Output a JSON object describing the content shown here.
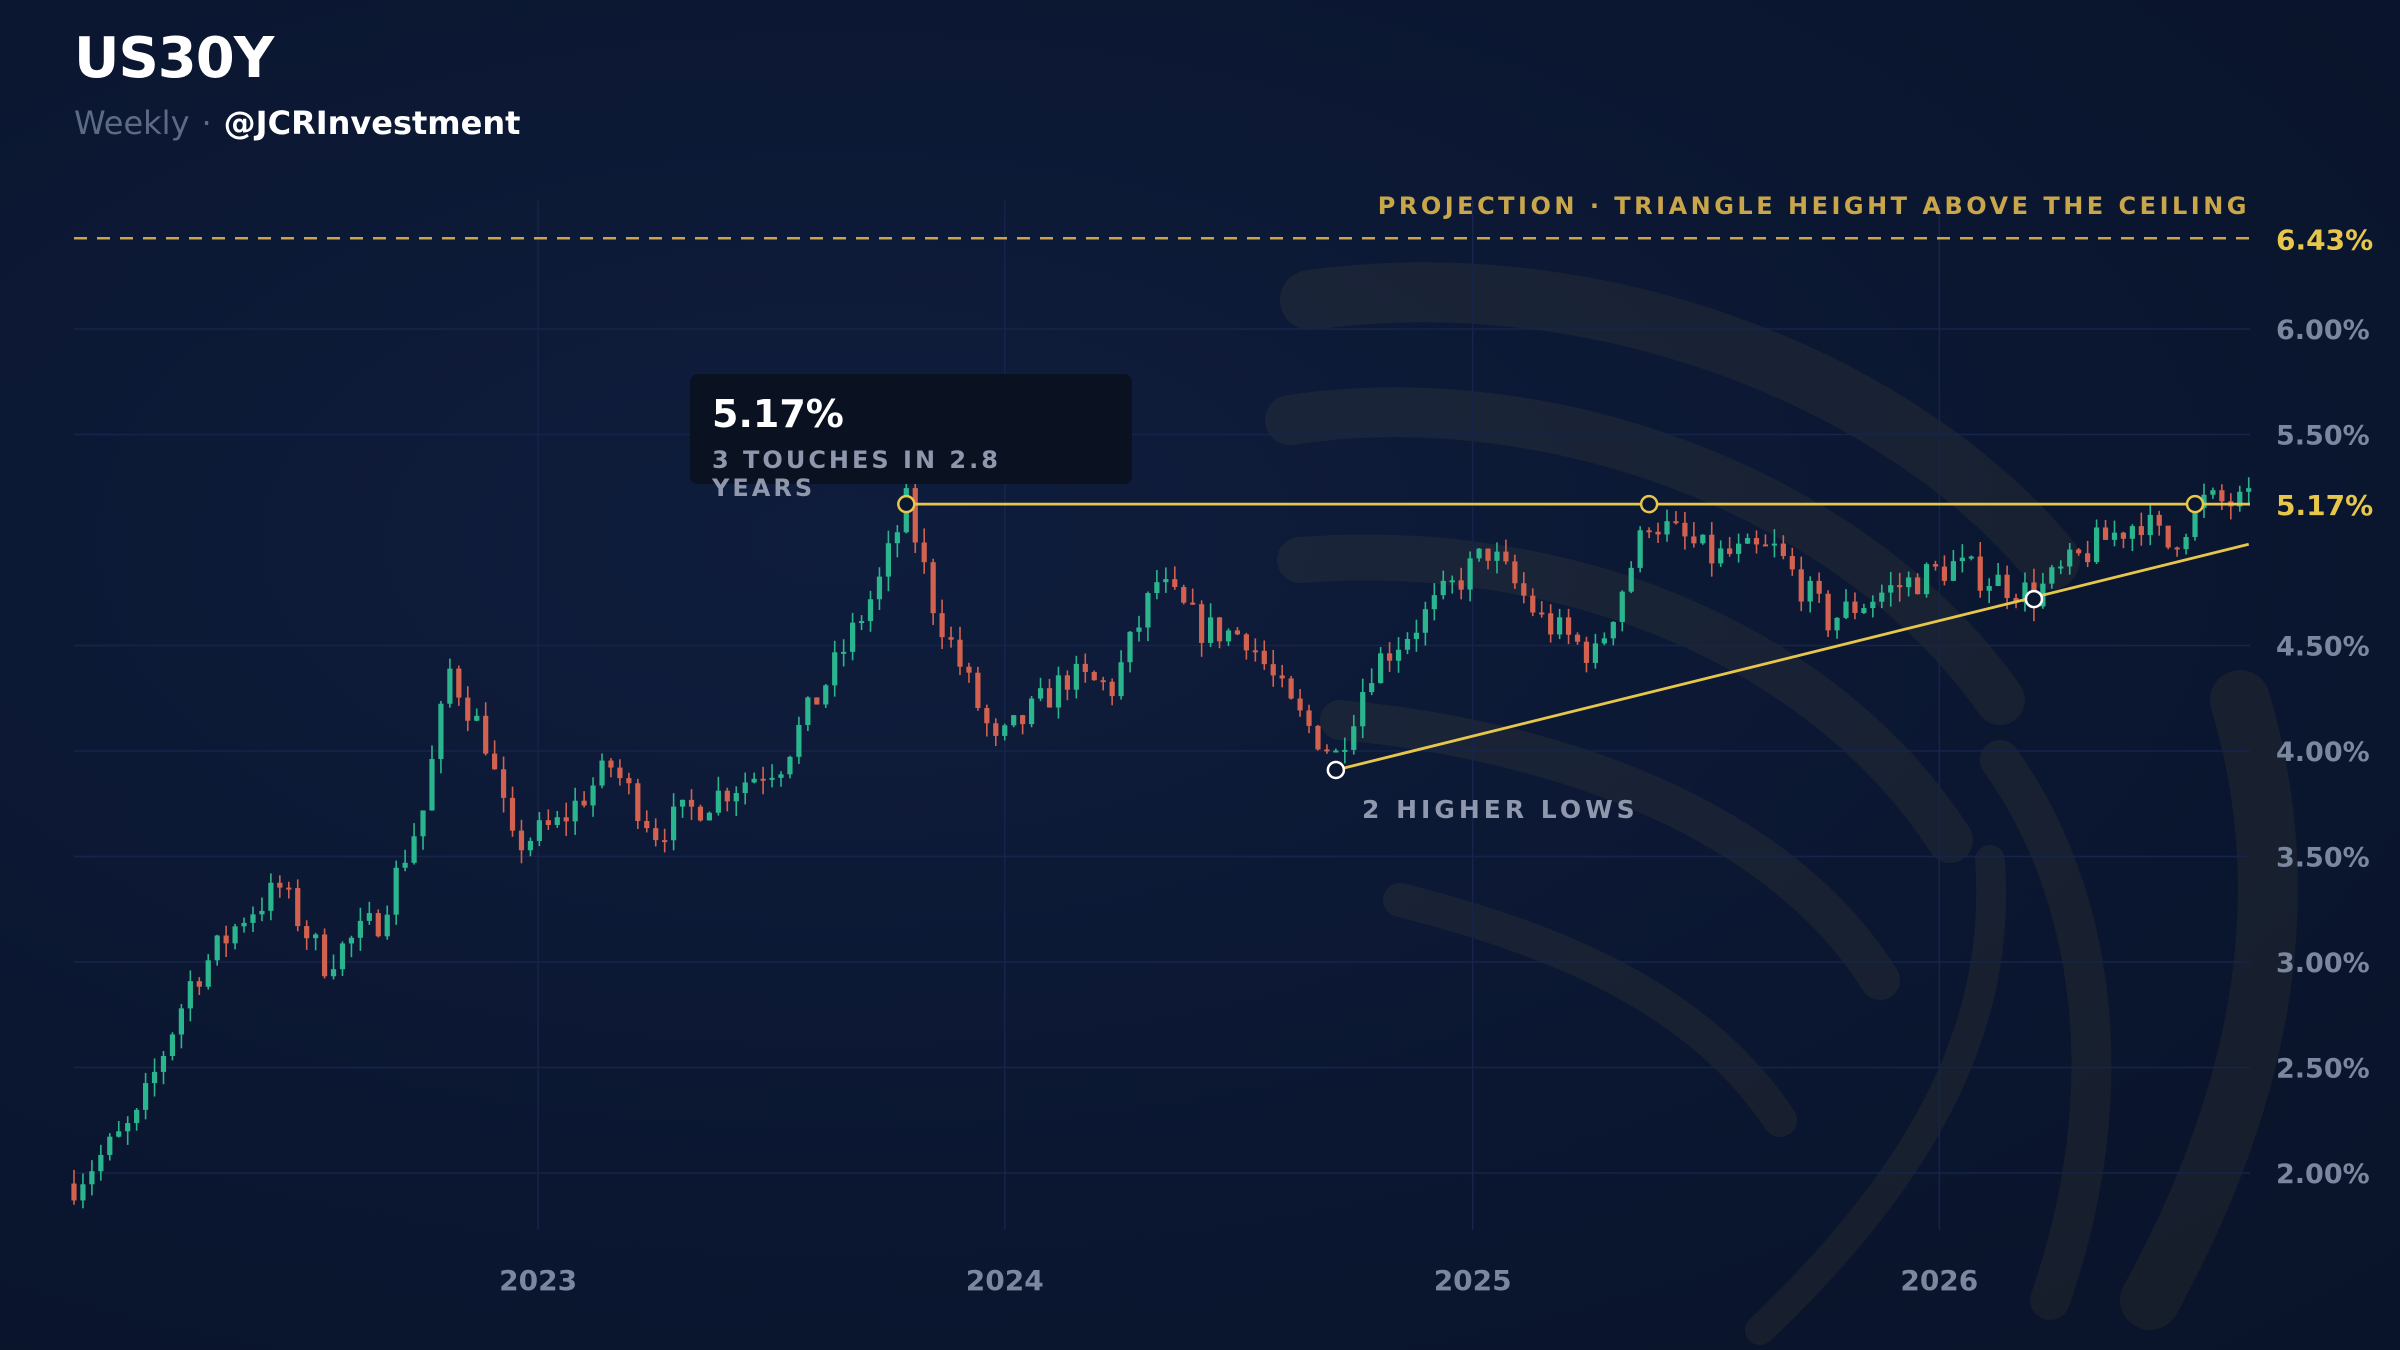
{
  "header": {
    "title": "US30Y",
    "timeframe": "Weekly",
    "separator": "·",
    "handle": "@JCRInvestment"
  },
  "colors": {
    "background": "#0b1731",
    "up": "#2bb58e",
    "down": "#d2624f",
    "trendline": "#e7c64c",
    "projection": "#c9a64a",
    "axis_text": "#7b879f",
    "grid": "#16244a"
  },
  "annotations": {
    "projection_label": "PROJECTION · TRIANGLE HEIGHT ABOVE THE CEILING",
    "projection_value": "6.43%",
    "ceiling_value": "5.17%",
    "callout_value": "5.17%",
    "callout_label": "3 TOUCHES IN 2.8 YEARS",
    "higher_lows_label": "2 HIGHER LOWS"
  },
  "chart_data": {
    "type": "candlestick",
    "title": "US30Y",
    "subtitle": "Weekly",
    "x_ticks": [
      {
        "label": "2023",
        "date": "2023-01-01"
      },
      {
        "label": "2024",
        "date": "2024-01-01"
      },
      {
        "label": "2025",
        "date": "2025-01-01"
      },
      {
        "label": "2026",
        "date": "2026-01-01"
      }
    ],
    "y_ticks": [
      {
        "value": 2.0,
        "label": "2.00%"
      },
      {
        "value": 2.5,
        "label": "2.50%"
      },
      {
        "value": 3.0,
        "label": "3.00%"
      },
      {
        "value": 3.5,
        "label": "3.50%"
      },
      {
        "value": 4.0,
        "label": "4.00%"
      },
      {
        "value": 4.5,
        "label": "4.50%"
      },
      {
        "value": 5.5,
        "label": "5.50%"
      },
      {
        "value": 6.0,
        "label": "6.00%"
      }
    ],
    "y_range": [
      1.75,
      6.6
    ],
    "x_range": [
      "2022-01-03",
      "2026-09-01"
    ],
    "ceiling": 5.17,
    "projection": 6.43,
    "touch_points": [
      {
        "date": "2023-10-16",
        "value": 5.17
      },
      {
        "date": "2025-05-19",
        "value": 5.17
      },
      {
        "date": "2026-07-20",
        "value": 5.17
      }
    ],
    "higher_lows": [
      {
        "date": "2024-09-16",
        "value": 3.91
      },
      {
        "date": "2026-03-16",
        "value": 4.72
      }
    ],
    "higher_low_trend_end": {
      "date": "2026-08-31",
      "value": 4.98
    },
    "path_points": [
      [
        "2022-01-03",
        1.95
      ],
      [
        "2022-02-21",
        2.25
      ],
      [
        "2022-04-04",
        2.9
      ],
      [
        "2022-05-16",
        3.22
      ],
      [
        "2022-06-13",
        3.35
      ],
      [
        "2022-07-18",
        3.0
      ],
      [
        "2022-08-29",
        3.2
      ],
      [
        "2022-10-03",
        3.72
      ],
      [
        "2022-10-24",
        4.38
      ],
      [
        "2022-11-21",
        4.05
      ],
      [
        "2022-12-12",
        3.55
      ],
      [
        "2023-01-16",
        3.65
      ],
      [
        "2023-02-27",
        3.93
      ],
      [
        "2023-04-03",
        3.62
      ],
      [
        "2023-05-29",
        3.82
      ],
      [
        "2023-07-10",
        3.95
      ],
      [
        "2023-08-21",
        4.4
      ],
      [
        "2023-09-25",
        4.8
      ],
      [
        "2023-10-16",
        5.17
      ],
      [
        "2023-11-06",
        4.7
      ],
      [
        "2023-12-25",
        4.02
      ],
      [
        "2024-02-19",
        4.35
      ],
      [
        "2024-03-25",
        4.3
      ],
      [
        "2024-04-29",
        4.8
      ],
      [
        "2024-06-03",
        4.58
      ],
      [
        "2024-07-08",
        4.55
      ],
      [
        "2024-08-12",
        4.2
      ],
      [
        "2024-09-16",
        3.98
      ],
      [
        "2024-10-14",
        4.4
      ],
      [
        "2024-11-18",
        4.6
      ],
      [
        "2025-01-13",
        4.95
      ],
      [
        "2025-02-24",
        4.62
      ],
      [
        "2025-04-07",
        4.45
      ],
      [
        "2025-05-19",
        5.1
      ],
      [
        "2025-07-07",
        4.92
      ],
      [
        "2025-08-25",
        4.95
      ],
      [
        "2025-10-06",
        4.62
      ],
      [
        "2025-11-17",
        4.75
      ],
      [
        "2026-01-12",
        4.88
      ],
      [
        "2026-03-16",
        4.74
      ],
      [
        "2026-05-04",
        4.98
      ],
      [
        "2026-06-08",
        5.1
      ],
      [
        "2026-06-29",
        4.97
      ],
      [
        "2026-07-27",
        5.18
      ],
      [
        "2026-08-31",
        5.17
      ]
    ]
  }
}
